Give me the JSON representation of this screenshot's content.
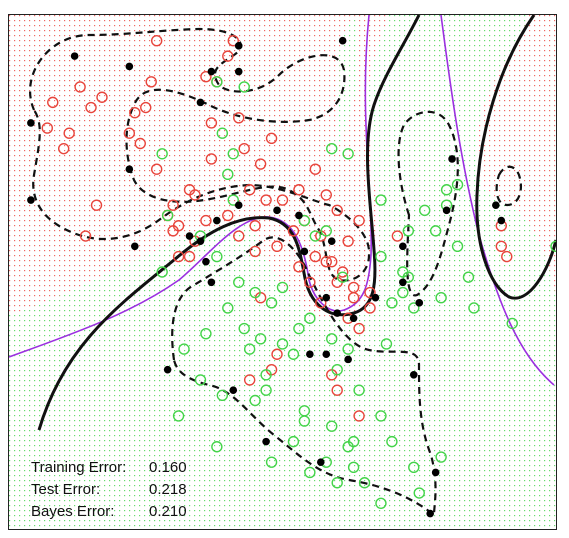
{
  "chart_data": {
    "type": "scatter",
    "title": "",
    "xlabel": "",
    "ylabel": "",
    "xlim": [
      0,
      1
    ],
    "ylim": [
      0,
      1
    ],
    "colors": {
      "class_red": "#e8453c",
      "class_green": "#44d44a",
      "svm_boundary": "#111111",
      "margin": "#111111",
      "bayes_boundary": "#9b30e0",
      "support_vector": "#000000"
    },
    "series": [
      {
        "values": [
          [
            0.08,
            0.83
          ],
          [
            0.13,
            0.86
          ],
          [
            0.15,
            0.82
          ],
          [
            0.17,
            0.84
          ],
          [
            0.11,
            0.77
          ],
          [
            0.1,
            0.74
          ],
          [
            0.07,
            0.78
          ],
          [
            0.26,
            0.87
          ],
          [
            0.25,
            0.82
          ],
          [
            0.23,
            0.81
          ],
          [
            0.22,
            0.77
          ],
          [
            0.24,
            0.75
          ],
          [
            0.27,
            0.7
          ],
          [
            0.33,
            0.66
          ],
          [
            0.3,
            0.63
          ],
          [
            0.37,
            0.79
          ],
          [
            0.38,
            0.87
          ],
          [
            0.36,
            0.88
          ],
          [
            0.37,
            0.72
          ],
          [
            0.44,
            0.66
          ],
          [
            0.46,
            0.71
          ],
          [
            0.43,
            0.74
          ],
          [
            0.48,
            0.76
          ],
          [
            0.42,
            0.8
          ],
          [
            0.4,
            0.92
          ],
          [
            0.41,
            0.95
          ],
          [
            0.27,
            0.95
          ],
          [
            0.34,
            0.65
          ],
          [
            0.36,
            0.6
          ],
          [
            0.4,
            0.61
          ],
          [
            0.47,
            0.64
          ],
          [
            0.5,
            0.64
          ],
          [
            0.53,
            0.66
          ],
          [
            0.56,
            0.7
          ],
          [
            0.58,
            0.65
          ],
          [
            0.6,
            0.62
          ],
          [
            0.64,
            0.6
          ],
          [
            0.62,
            0.56
          ],
          [
            0.57,
            0.57
          ],
          [
            0.56,
            0.53
          ],
          [
            0.59,
            0.52
          ],
          [
            0.61,
            0.5
          ],
          [
            0.6,
            0.48
          ],
          [
            0.63,
            0.47
          ],
          [
            0.66,
            0.46
          ],
          [
            0.63,
            0.45
          ],
          [
            0.62,
            0.41
          ],
          [
            0.64,
            0.39
          ],
          [
            0.66,
            0.43
          ],
          [
            0.54,
            0.6
          ],
          [
            0.52,
            0.58
          ],
          [
            0.29,
            0.61
          ],
          [
            0.3,
            0.58
          ],
          [
            0.31,
            0.59
          ],
          [
            0.34,
            0.56
          ],
          [
            0.33,
            0.53
          ],
          [
            0.31,
            0.53
          ],
          [
            0.45,
            0.54
          ],
          [
            0.42,
            0.57
          ],
          [
            0.45,
            0.59
          ],
          [
            0.46,
            0.45
          ],
          [
            0.14,
            0.57
          ],
          [
            0.55,
            0.48
          ],
          [
            0.53,
            0.51
          ],
          [
            0.49,
            0.55
          ],
          [
            0.71,
            0.57
          ],
          [
            0.49,
            0.34
          ],
          [
            0.48,
            0.31
          ],
          [
            0.44,
            0.29
          ],
          [
            0.59,
            0.3
          ],
          [
            0.6,
            0.27
          ],
          [
            0.64,
            0.22
          ],
          [
            0.58,
            0.52
          ],
          [
            0.57,
            0.44
          ],
          [
            0.9,
            0.55
          ],
          [
            0.91,
            0.53
          ],
          [
            0.9,
            0.59
          ],
          [
            0.16,
            0.63
          ]
        ]
      },
      {
        "values": [
          [
            0.38,
            0.87
          ],
          [
            0.43,
            0.86
          ],
          [
            0.39,
            0.77
          ],
          [
            0.41,
            0.73
          ],
          [
            0.28,
            0.73
          ],
          [
            0.4,
            0.69
          ],
          [
            0.29,
            0.61
          ],
          [
            0.35,
            0.57
          ],
          [
            0.38,
            0.53
          ],
          [
            0.59,
            0.74
          ],
          [
            0.62,
            0.73
          ],
          [
            0.41,
            0.64
          ],
          [
            0.58,
            0.58
          ],
          [
            0.68,
            0.53
          ],
          [
            0.73,
            0.49
          ],
          [
            0.76,
            0.62
          ],
          [
            0.73,
            0.58
          ],
          [
            0.78,
            0.58
          ],
          [
            0.8,
            0.66
          ],
          [
            0.82,
            0.67
          ],
          [
            0.8,
            0.63
          ],
          [
            0.82,
            0.55
          ],
          [
            0.72,
            0.46
          ],
          [
            0.74,
            0.43
          ],
          [
            0.79,
            0.45
          ],
          [
            0.84,
            0.49
          ],
          [
            0.85,
            0.43
          ],
          [
            0.92,
            0.4
          ],
          [
            1.0,
            0.55
          ],
          [
            0.54,
            0.6
          ],
          [
            0.56,
            0.57
          ],
          [
            0.61,
            0.49
          ],
          [
            0.5,
            0.47
          ],
          [
            0.48,
            0.44
          ],
          [
            0.45,
            0.46
          ],
          [
            0.42,
            0.48
          ],
          [
            0.46,
            0.37
          ],
          [
            0.43,
            0.39
          ],
          [
            0.44,
            0.35
          ],
          [
            0.47,
            0.3
          ],
          [
            0.47,
            0.27
          ],
          [
            0.45,
            0.25
          ],
          [
            0.35,
            0.29
          ],
          [
            0.39,
            0.26
          ],
          [
            0.32,
            0.35
          ],
          [
            0.36,
            0.38
          ],
          [
            0.4,
            0.43
          ],
          [
            0.55,
            0.41
          ],
          [
            0.53,
            0.39
          ],
          [
            0.59,
            0.37
          ],
          [
            0.62,
            0.35
          ],
          [
            0.64,
            0.27
          ],
          [
            0.6,
            0.31
          ],
          [
            0.54,
            0.23
          ],
          [
            0.54,
            0.21
          ],
          [
            0.59,
            0.2
          ],
          [
            0.63,
            0.17
          ],
          [
            0.52,
            0.17
          ],
          [
            0.48,
            0.13
          ],
          [
            0.55,
            0.11
          ],
          [
            0.58,
            0.13
          ],
          [
            0.63,
            0.12
          ],
          [
            0.6,
            0.09
          ],
          [
            0.62,
            0.16
          ],
          [
            0.65,
            0.09
          ],
          [
            0.68,
            0.05
          ],
          [
            0.68,
            0.22
          ],
          [
            0.7,
            0.17
          ],
          [
            0.74,
            0.12
          ],
          [
            0.75,
            0.07
          ],
          [
            0.79,
            0.14
          ],
          [
            0.31,
            0.22
          ],
          [
            0.38,
            0.16
          ],
          [
            0.5,
            0.36
          ],
          [
            0.52,
            0.34
          ],
          [
            0.69,
            0.36
          ],
          [
            0.7,
            0.44
          ],
          [
            0.72,
            0.5
          ],
          [
            0.68,
            0.64
          ],
          [
            0.28,
            0.5
          ]
        ]
      }
    ],
    "support_vectors": [
      [
        0.12,
        0.92
      ],
      [
        0.22,
        0.9
      ],
      [
        0.42,
        0.94
      ],
      [
        0.42,
        0.89
      ],
      [
        0.37,
        0.89
      ],
      [
        0.35,
        0.83
      ],
      [
        0.04,
        0.79
      ],
      [
        0.22,
        0.7
      ],
      [
        0.04,
        0.64
      ],
      [
        0.23,
        0.55
      ],
      [
        0.38,
        0.6
      ],
      [
        0.42,
        0.63
      ],
      [
        0.49,
        0.62
      ],
      [
        0.53,
        0.61
      ],
      [
        0.59,
        0.56
      ],
      [
        0.54,
        0.54
      ],
      [
        0.58,
        0.45
      ],
      [
        0.6,
        0.42
      ],
      [
        0.63,
        0.41
      ],
      [
        0.67,
        0.45
      ],
      [
        0.72,
        0.48
      ],
      [
        0.75,
        0.44
      ],
      [
        0.72,
        0.55
      ],
      [
        0.81,
        0.72
      ],
      [
        0.8,
        0.62
      ],
      [
        0.89,
        0.63
      ],
      [
        0.9,
        0.6
      ],
      [
        0.61,
        0.95
      ],
      [
        0.35,
        0.56
      ],
      [
        0.33,
        0.57
      ],
      [
        0.37,
        0.48
      ],
      [
        0.36,
        0.52
      ],
      [
        0.55,
        0.34
      ],
      [
        0.58,
        0.34
      ],
      [
        0.62,
        0.33
      ],
      [
        0.74,
        0.3
      ],
      [
        0.29,
        0.31
      ],
      [
        0.41,
        0.27
      ],
      [
        0.47,
        0.17
      ],
      [
        0.57,
        0.13
      ],
      [
        0.78,
        0.11
      ],
      [
        0.77,
        0.03
      ]
    ],
    "errors": [
      {
        "label": "Training Error:",
        "value": "0.160"
      },
      {
        "label": "Test Error:",
        "value": "0.218"
      },
      {
        "label": "Bayes Error:",
        "value": "0.210"
      }
    ]
  }
}
